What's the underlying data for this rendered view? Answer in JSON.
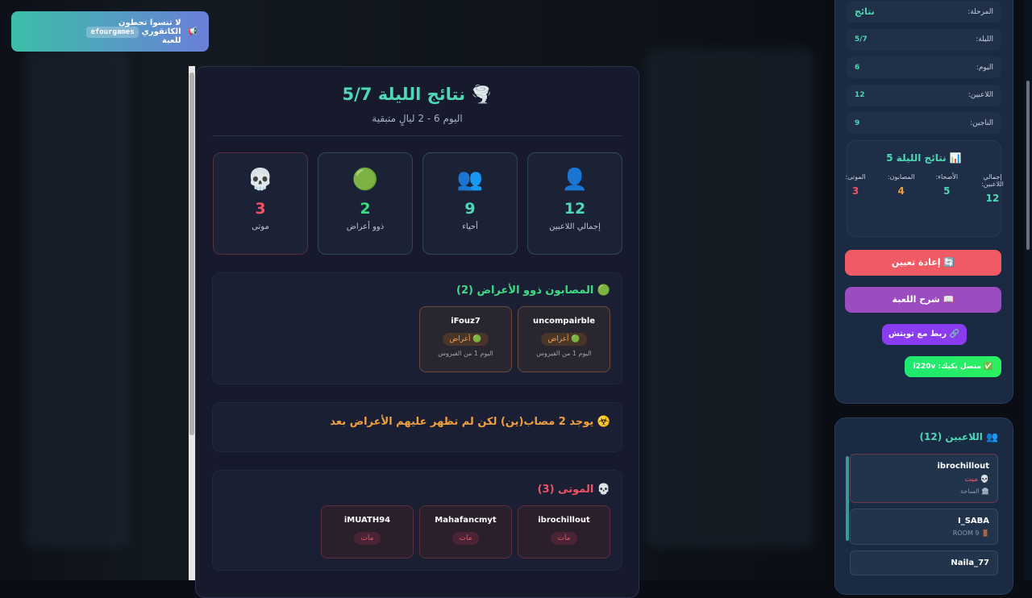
{
  "toast": {
    "text": "لا تنسوا تحطون الكاتقوري",
    "code": "efourgames",
    "text2": "للعبة",
    "icon": "megaphone-icon"
  },
  "modal": {
    "title": "🌪️ نتائج الليلة 5/7",
    "subtitle": "اليوم 6 - 2 ليالٍ متبقية",
    "stats": [
      {
        "icon": "👤",
        "value": "12",
        "label": "إجمالي اللاعبين",
        "color": "#4fd8b5"
      },
      {
        "icon": "👥",
        "value": "9",
        "label": "أحياء",
        "color": "#4fd8b5"
      },
      {
        "icon": "🟢",
        "value": "2",
        "label": "ذوو أعراض",
        "color": "#3ddc84"
      },
      {
        "icon": "💀",
        "value": "3",
        "label": "موتى",
        "color": "#ef5364"
      }
    ],
    "symptomatic": {
      "title": "🟢 المصابون ذوو الأعراض (2)",
      "players": [
        {
          "name": "uncompairble",
          "status": "🟢 أعراض",
          "note": "اليوم 1 من الفيروس"
        },
        {
          "name": "iFouz7",
          "status": "🟢 أعراض",
          "note": "اليوم 1 من الفيروس"
        }
      ]
    },
    "hidden": {
      "text": "☣️ يوجد 2 مصاب(ين) لكن لم تظهر عليهم الأعراض بعد"
    },
    "dead": {
      "title": "💀 الموتى (3)",
      "players": [
        {
          "name": "ibrochillout",
          "status": "مات"
        },
        {
          "name": "Mahafancmyt",
          "status": "مات"
        },
        {
          "name": "iMUATH94",
          "status": "مات"
        }
      ]
    }
  },
  "sidebar": {
    "rows": [
      {
        "k": "المرحلة:",
        "v": "نتائج"
      },
      {
        "k": "الليلة:",
        "v": "5/7"
      },
      {
        "k": "اليوم:",
        "v": "6"
      },
      {
        "k": "اللاعبين:",
        "v": "12"
      },
      {
        "k": "الناجين:",
        "v": "9"
      }
    ],
    "night": {
      "title": "📊 نتائج الليلة 5",
      "items": [
        {
          "k": "إجمالي اللاعبين:",
          "v": "12",
          "color": "#4fd8b5"
        },
        {
          "k": "الأصحاء:",
          "v": "5",
          "color": "#4fd8b5"
        },
        {
          "k": "المصابون:",
          "v": "4",
          "color": "#f0a040"
        },
        {
          "k": "الموتى:",
          "v": "3",
          "color": "#ef5364"
        }
      ]
    },
    "reset": "🔄 إعادة تعيين",
    "explain": "📖 شرح اللعبة",
    "twitch": "🔗 ربط مع تويتش",
    "connected": "✅ متصل بكيك: i220v"
  },
  "players": {
    "title": "👥 اللاعبين (12)",
    "list": [
      {
        "name": "ibrochillout",
        "status": "💀 ميت",
        "room": "🏛️ الساحة"
      },
      {
        "name": "I_SABA",
        "room": "🚪 ROOM 9"
      },
      {
        "name": "Naila_77"
      }
    ]
  }
}
